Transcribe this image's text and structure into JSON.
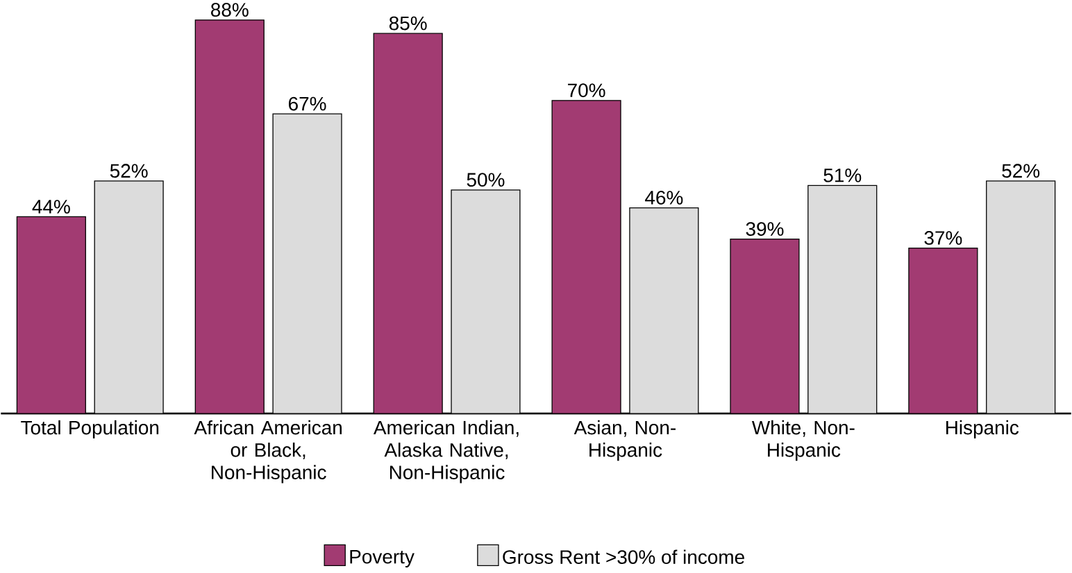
{
  "chart_data": {
    "type": "bar",
    "categories": [
      "Total Population",
      "African American or Black, Non-Hispanic",
      "American Indian, Alaska Native, Non-Hispanic",
      "Asian, Non-Hispanic",
      "White, Non-Hispanic",
      "Hispanic"
    ],
    "series": [
      {
        "name": "Poverty",
        "color": "#a23b72",
        "values": [
          44,
          88,
          85,
          70,
          39,
          37
        ],
        "value_labels": [
          "44%",
          "88%",
          "85%",
          "70%",
          "39%",
          "37%"
        ]
      },
      {
        "name": "Gross Rent >30% of income",
        "color": "#dcdcdc",
        "values": [
          52,
          67,
          50,
          46,
          51,
          52
        ],
        "value_labels": [
          "52%",
          "67%",
          "50%",
          "46%",
          "51%",
          "52%"
        ]
      }
    ],
    "legend": "bottom"
  }
}
